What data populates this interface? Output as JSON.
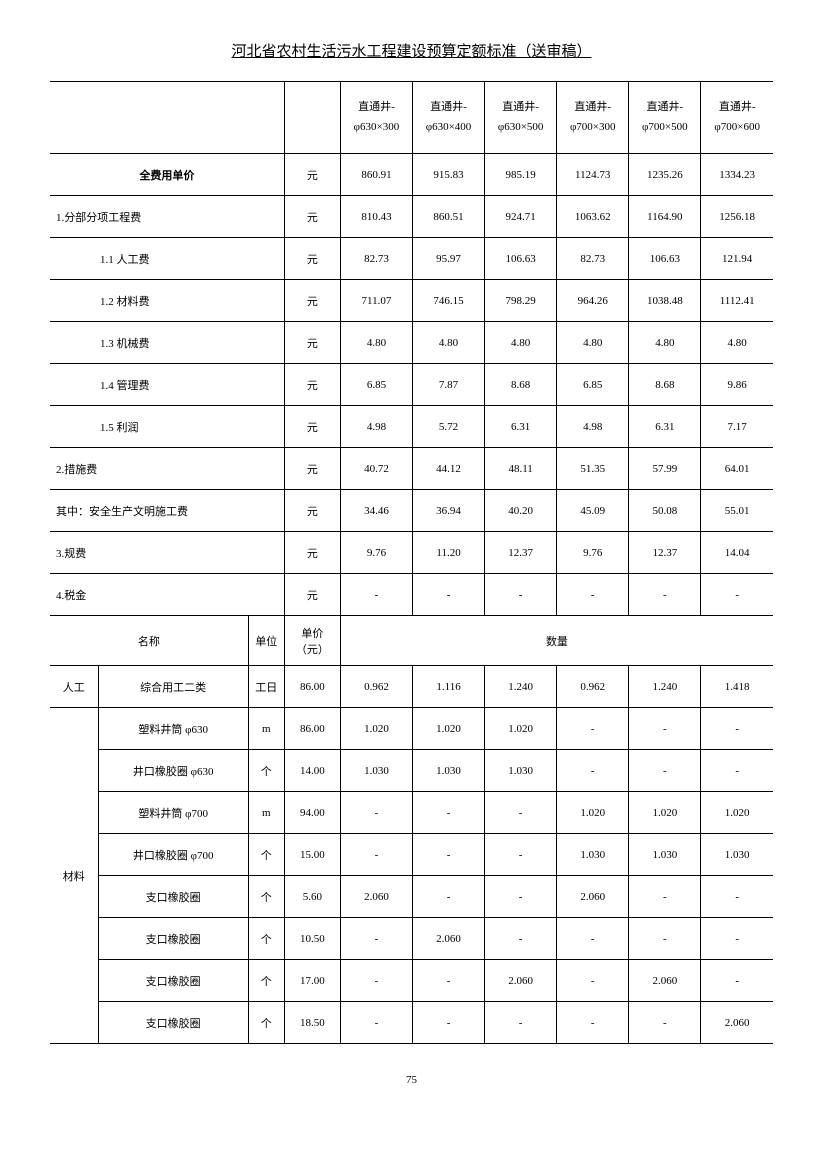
{
  "title": "河北省农村生活污水工程建设预算定额标准（送审稿）",
  "page_number": "75",
  "headers": {
    "spec_prefix": "直通井-",
    "specs": [
      "φ630×300",
      "φ630×400",
      "φ630×500",
      "φ700×300",
      "φ700×500",
      "φ700×600"
    ]
  },
  "unit_yuan": "元",
  "fee_rows": {
    "total": {
      "label": "全费用单价",
      "values": [
        "860.91",
        "915.83",
        "985.19",
        "1124.73",
        "1235.26",
        "1334.23"
      ]
    },
    "r1": {
      "label": "1.分部分项工程费",
      "values": [
        "810.43",
        "860.51",
        "924.71",
        "1063.62",
        "1164.90",
        "1256.18"
      ]
    },
    "r11": {
      "label": "1.1 人工费",
      "values": [
        "82.73",
        "95.97",
        "106.63",
        "82.73",
        "106.63",
        "121.94"
      ]
    },
    "r12": {
      "label": "1.2 材料费",
      "values": [
        "711.07",
        "746.15",
        "798.29",
        "964.26",
        "1038.48",
        "1112.41"
      ]
    },
    "r13": {
      "label": "1.3 机械费",
      "values": [
        "4.80",
        "4.80",
        "4.80",
        "4.80",
        "4.80",
        "4.80"
      ]
    },
    "r14": {
      "label": "1.4 管理费",
      "values": [
        "6.85",
        "7.87",
        "8.68",
        "6.85",
        "8.68",
        "9.86"
      ]
    },
    "r15": {
      "label": "1.5 利润",
      "values": [
        "4.98",
        "5.72",
        "6.31",
        "4.98",
        "6.31",
        "7.17"
      ]
    },
    "r2": {
      "label": "2.措施费",
      "values": [
        "40.72",
        "44.12",
        "48.11",
        "51.35",
        "57.99",
        "64.01"
      ]
    },
    "r2s": {
      "label": "其中：安全生产文明施工费",
      "values": [
        "34.46",
        "36.94",
        "40.20",
        "45.09",
        "50.08",
        "55.01"
      ]
    },
    "r3": {
      "label": "3.规费",
      "values": [
        "9.76",
        "11.20",
        "12.37",
        "9.76",
        "12.37",
        "14.04"
      ]
    },
    "r4": {
      "label": "4.税金",
      "values": [
        "-",
        "-",
        "-",
        "-",
        "-",
        "-"
      ]
    }
  },
  "sub_headers": {
    "name": "名称",
    "unit": "单位",
    "price": "单价（元）",
    "qty": "数量"
  },
  "categories": {
    "labor": "人工",
    "material": "材料"
  },
  "labor_row": {
    "name": "综合用工二类",
    "unit": "工日",
    "price": "86.00",
    "values": [
      "0.962",
      "1.116",
      "1.240",
      "0.962",
      "1.240",
      "1.418"
    ]
  },
  "material_rows": [
    {
      "name": "塑料井筒 φ630",
      "unit": "m",
      "price": "86.00",
      "values": [
        "1.020",
        "1.020",
        "1.020",
        "-",
        "-",
        "-"
      ]
    },
    {
      "name": "井口橡胶圈 φ630",
      "unit": "个",
      "price": "14.00",
      "values": [
        "1.030",
        "1.030",
        "1.030",
        "-",
        "-",
        "-"
      ]
    },
    {
      "name": "塑料井筒 φ700",
      "unit": "m",
      "price": "94.00",
      "values": [
        "-",
        "-",
        "-",
        "1.020",
        "1.020",
        "1.020"
      ]
    },
    {
      "name": "井口橡胶圈 φ700",
      "unit": "个",
      "price": "15.00",
      "values": [
        "-",
        "-",
        "-",
        "1.030",
        "1.030",
        "1.030"
      ]
    },
    {
      "name": "支口橡胶圈",
      "unit": "个",
      "price": "5.60",
      "values": [
        "2.060",
        "-",
        "-",
        "2.060",
        "-",
        "-"
      ]
    },
    {
      "name": "支口橡胶圈",
      "unit": "个",
      "price": "10.50",
      "values": [
        "-",
        "2.060",
        "-",
        "-",
        "-",
        "-"
      ]
    },
    {
      "name": "支口橡胶圈",
      "unit": "个",
      "price": "17.00",
      "values": [
        "-",
        "-",
        "2.060",
        "-",
        "2.060",
        "-"
      ]
    },
    {
      "name": "支口橡胶圈",
      "unit": "个",
      "price": "18.50",
      "values": [
        "-",
        "-",
        "-",
        "-",
        "-",
        "2.060"
      ]
    }
  ]
}
